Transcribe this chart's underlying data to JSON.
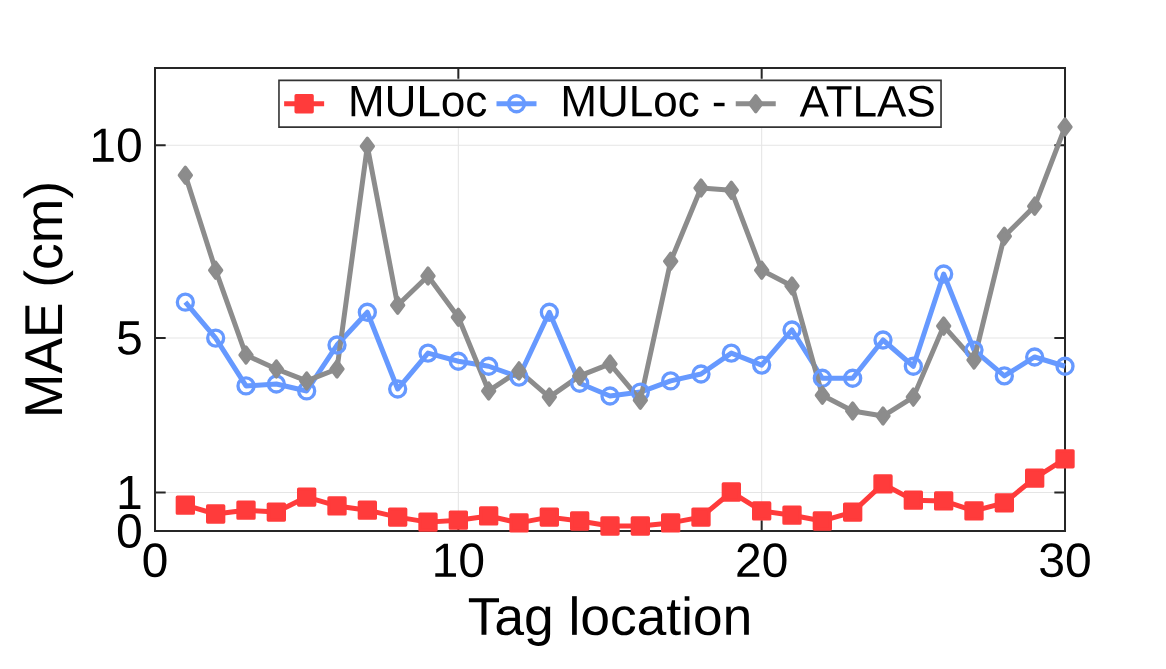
{
  "chart_data": {
    "type": "line",
    "xlabel": "Tag location",
    "ylabel": "MAE (cm)",
    "x": [
      1,
      2,
      3,
      4,
      5,
      6,
      7,
      8,
      9,
      10,
      11,
      12,
      13,
      14,
      15,
      16,
      17,
      18,
      19,
      20,
      21,
      22,
      23,
      24,
      25,
      26,
      27,
      28,
      29,
      30
    ],
    "series": [
      {
        "name": "MULoc",
        "color": "#ff3b3b",
        "marker": "square",
        "values": [
          0.67,
          0.44,
          0.54,
          0.49,
          0.88,
          0.65,
          0.54,
          0.36,
          0.23,
          0.28,
          0.39,
          0.21,
          0.36,
          0.26,
          0.13,
          0.13,
          0.21,
          0.36,
          1.01,
          0.52,
          0.41,
          0.26,
          0.49,
          1.22,
          0.8,
          0.78,
          0.52,
          0.73,
          1.37,
          1.87
        ]
      },
      {
        "name": "MULoc -",
        "color": "#6699ff",
        "marker": "circle",
        "values": [
          5.93,
          5.0,
          3.76,
          3.81,
          3.63,
          4.82,
          5.67,
          3.68,
          4.61,
          4.4,
          4.27,
          3.99,
          5.67,
          3.83,
          3.5,
          3.6,
          3.89,
          4.07,
          4.61,
          4.3,
          5.21,
          3.96,
          3.96,
          4.95,
          4.27,
          6.66,
          4.69,
          4.02,
          4.51,
          4.27
        ]
      },
      {
        "name": "ATLAS",
        "color": "#8c8c8c",
        "marker": "diamond",
        "values": [
          9.22,
          6.76,
          4.56,
          4.2,
          3.89,
          4.2,
          9.97,
          5.85,
          6.61,
          5.54,
          3.63,
          4.15,
          3.47,
          4.02,
          4.33,
          3.39,
          6.99,
          8.89,
          8.83,
          6.76,
          6.35,
          3.52,
          3.11,
          2.98,
          3.47,
          5.31,
          4.43,
          7.64,
          8.42,
          10.47
        ]
      }
    ],
    "xlim": [
      0,
      30
    ],
    "ylim": [
      0,
      12
    ],
    "xticks": [
      0,
      10,
      20,
      30
    ],
    "yticks": [
      0,
      1,
      5,
      10
    ],
    "grid": true,
    "legend": "top",
    "line_style": "solid"
  }
}
